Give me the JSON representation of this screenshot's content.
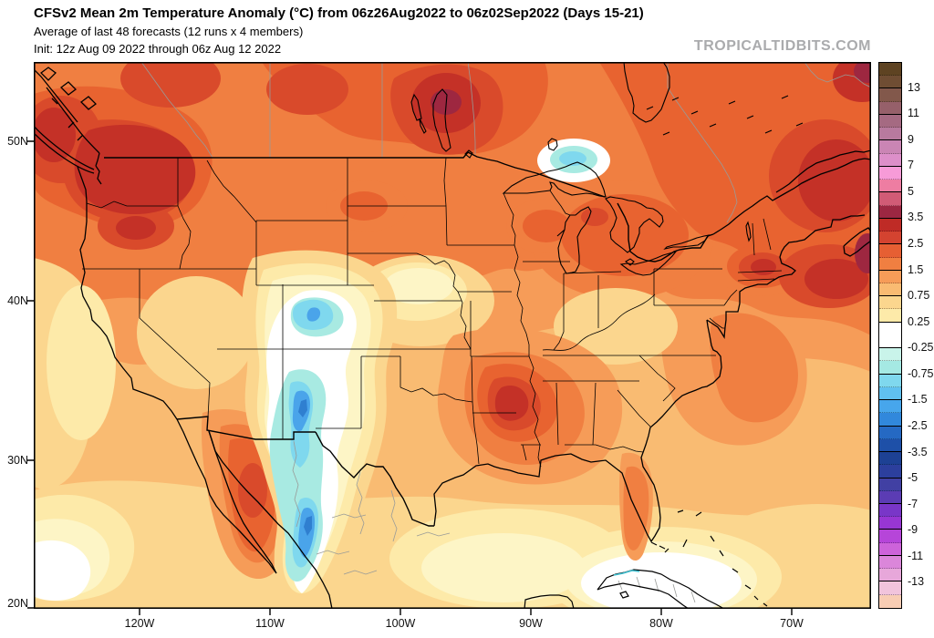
{
  "header": {
    "title": "CFSv2 Mean 2m Temperature Anomaly (°C) from 06z26Aug2022 to 06z02Sep2022 (Days 15-21)",
    "subtitle": "Average of last 48 forecasts (12 runs x 4 members)",
    "init_line": "Init: 12z Aug 09 2022 through 06z Aug 12 2022",
    "watermark": "TROPICALTIDBITS.COM"
  },
  "axes": {
    "lat_labels": [
      "50N",
      "40N",
      "30N",
      "20N"
    ],
    "lon_labels": [
      "120W",
      "110W",
      "100W",
      "90W",
      "80W",
      "70W"
    ]
  },
  "colorbar": {
    "labels": [
      "13",
      "11",
      "9",
      "7",
      "5",
      "3.5",
      "2.5",
      "1.5",
      "0.75",
      "0.25",
      "-0.25",
      "-0.75",
      "-1.5",
      "-2.5",
      "-3.5",
      "-5",
      "-7",
      "-9",
      "-11",
      "-13"
    ],
    "colors": [
      "#5e4322",
      "#6f4d33",
      "#82584b",
      "#96606a",
      "#a56a82",
      "#b87a9e",
      "#ca85b4",
      "#dd8fc9",
      "#f79bd8",
      "#ee7da2",
      "#d15b76",
      "#9c2742",
      "#bf2b26",
      "#d44330",
      "#e65f33",
      "#f07f41",
      "#f69c58",
      "#f9bb72",
      "#fbd68e",
      "#fdeaa9",
      "#ffffff",
      "#c9f4ea",
      "#a5e9e3",
      "#7fd8ee",
      "#60c1f0",
      "#47a6ec",
      "#3188dc",
      "#2569c3",
      "#1e50a8",
      "#1d4194",
      "#2c3f9d",
      "#4140a3",
      "#5b3cb4",
      "#7936c8",
      "#9836d3",
      "#b645d9",
      "#cd63da",
      "#db86da",
      "#e7a7da",
      "#f1c4dc",
      "#f8cdb4"
    ],
    "white_band_index": 20
  },
  "chart_data": {
    "type": "heatmap",
    "subtype": "filled-contour weather map",
    "title": "CFSv2 Mean 2m Temperature Anomaly (°C) from 06z26Aug2022 to 06z02Sep2022 (Days 15-21)",
    "variable": "2m temperature anomaly",
    "units": "°C",
    "model": "CFSv2",
    "valid_period": "06z26Aug2022 to 06z02Sep2022",
    "lead_time": "Days 15-21",
    "ensemble": "Average of last 48 forecasts (12 runs x 4 members)",
    "init_range": "12z Aug 09 2022 through 06z Aug 12 2022",
    "source_watermark": "TROPICALTIDBITS.COM",
    "geo_domain": {
      "lon_range_deg_west": [
        128,
        64
      ],
      "lat_range_deg_north": [
        20,
        55
      ]
    },
    "lat_ticks": [
      "50N",
      "40N",
      "30N",
      "20N"
    ],
    "lon_ticks": [
      "120W",
      "110W",
      "100W",
      "90W",
      "80W",
      "70W"
    ],
    "colorbar_boundary_labels": [
      13,
      11,
      9,
      7,
      5,
      3.5,
      2.5,
      1.5,
      0.75,
      0.25,
      -0.25,
      -0.75,
      -1.5,
      -2.5,
      -3.5,
      -5,
      -7,
      -9,
      -11,
      -13
    ],
    "legend_position": "right",
    "notable_anomalies": [
      {
        "region": "Pacific Northwest (WA/OR/ID/BC)",
        "anomaly_c": "+2.5 to +5"
      },
      {
        "region": "Southern Manitoba near Lake Winnipeg",
        "anomaly_c": "+4 to +6"
      },
      {
        "region": "Quebec / Maine / New Brunswick / Nova Scotia",
        "anomaly_c": "+2.5 to +5"
      },
      {
        "region": "Massachusetts / southern New England",
        "anomaly_c": "+2.5 to +4"
      },
      {
        "region": "Arkansas / Louisiana / Mississippi",
        "anomaly_c": "+2 to +4"
      },
      {
        "region": "Great Lakes ring (lower Michigan, Wisconsin)",
        "anomaly_c": "+2 to +3"
      },
      {
        "region": "Colorado / New Mexico / far west Texas / Chihuahua",
        "anomaly_c": "-0.5 to -2.5"
      },
      {
        "region": "Lake Superior cool spot",
        "anomaly_c": "-0.5 to -1.5"
      },
      {
        "region": "Nebraska / Kansas",
        "anomaly_c": "0 to +0.75"
      },
      {
        "region": "Gulf of Mexico, Cuba and southwest Pacific corner",
        "anomaly_c": "-0.25 to +0.75"
      }
    ]
  }
}
